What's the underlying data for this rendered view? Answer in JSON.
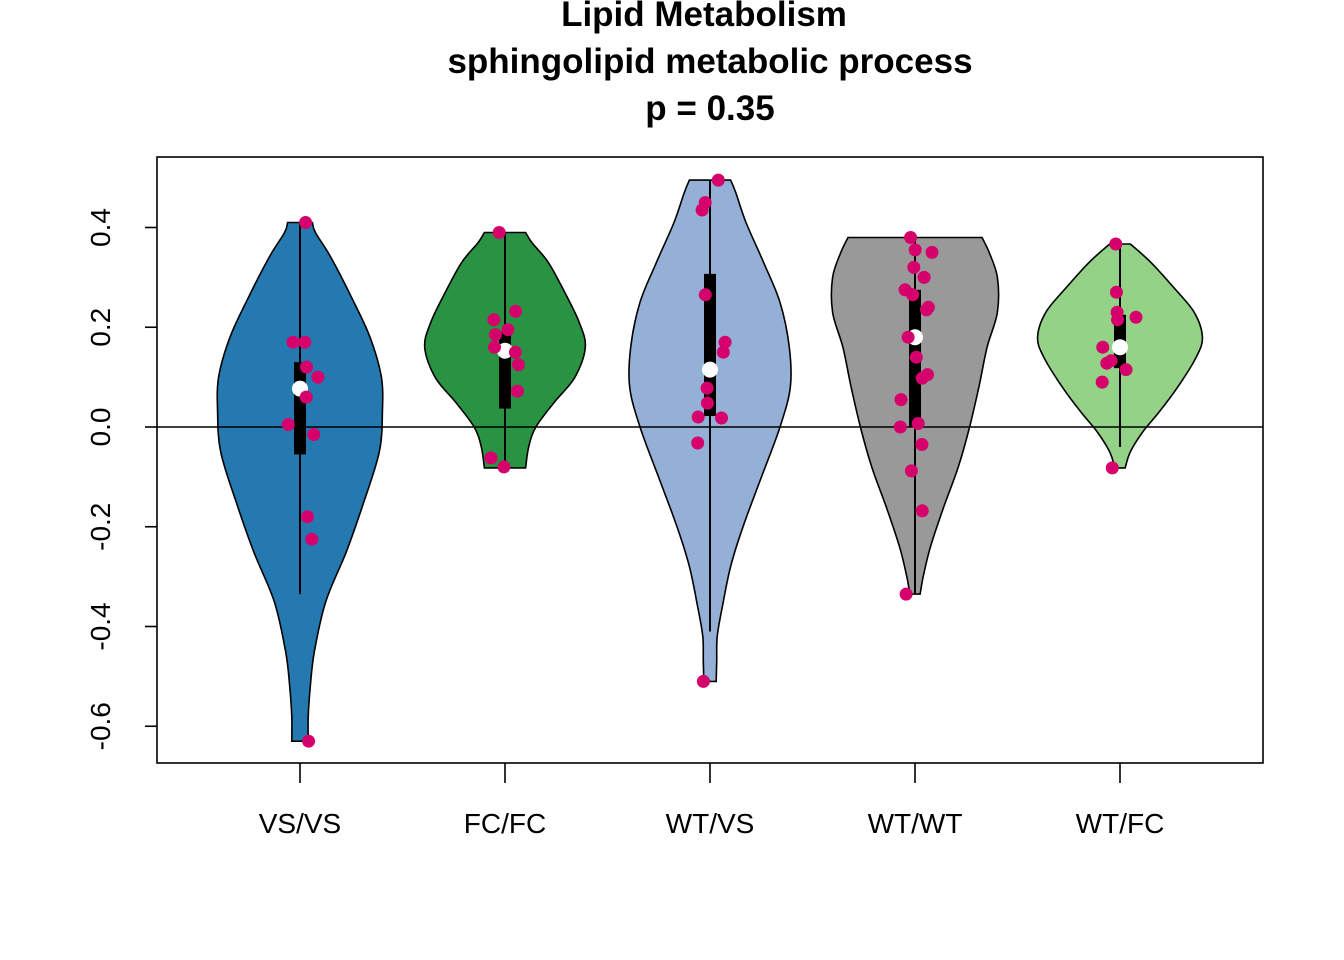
{
  "chart_data": {
    "type": "violin",
    "title": "Lipid Metabolism",
    "subtitle": "sphingolipid metabolic process",
    "pvalue_label": "p = 0.35",
    "xlabel": "",
    "ylabel": "",
    "ylim": [
      -0.67,
      0.54
    ],
    "yticks": [
      -0.6,
      -0.4,
      -0.2,
      0.0,
      0.2,
      0.4
    ],
    "ytick_labels": [
      "-0.6",
      "-0.4",
      "-0.2",
      "0.0",
      "0.2",
      "0.4"
    ],
    "reference_line_y": 0.0,
    "point_color": "#d6006c",
    "median_color": "#ffffff",
    "groups": [
      {
        "label": "VS/VS",
        "fill": "#2579b1",
        "range": [
          -0.63,
          0.41
        ],
        "whisker": [
          -0.335,
          0.41
        ],
        "box": [
          -0.055,
          0.13
        ],
        "median": 0.077,
        "half_width_profile": [
          [
            -0.63,
            0.08
          ],
          [
            -0.58,
            0.08
          ],
          [
            -0.52,
            0.1
          ],
          [
            -0.45,
            0.14
          ],
          [
            -0.35,
            0.25
          ],
          [
            -0.25,
            0.45
          ],
          [
            -0.15,
            0.62
          ],
          [
            -0.05,
            0.77
          ],
          [
            0.03,
            0.8
          ],
          [
            0.1,
            0.79
          ],
          [
            0.18,
            0.68
          ],
          [
            0.26,
            0.5
          ],
          [
            0.34,
            0.3
          ],
          [
            0.39,
            0.15
          ],
          [
            0.41,
            0.12
          ]
        ],
        "points": [
          [
            0.41,
            0.41
          ],
          [
            0.17,
            0.17
          ],
          [
            0.17,
            0.17
          ],
          [
            0.1,
            0.1
          ],
          [
            0.12,
            0.12
          ],
          [
            0.06,
            0.06
          ],
          [
            0.005,
            0.005
          ],
          [
            -0.015,
            -0.015
          ],
          [
            -0.18,
            -0.18
          ],
          [
            -0.225,
            -0.225
          ],
          [
            -0.63,
            -0.63
          ]
        ]
      },
      {
        "label": "FC/FC",
        "fill": "#2a9343",
        "range": [
          -0.082,
          0.39
        ],
        "whisker": [
          -0.082,
          0.39
        ],
        "box": [
          0.037,
          0.19
        ],
        "median": 0.153,
        "half_width_profile": [
          [
            -0.082,
            0.2
          ],
          [
            -0.04,
            0.23
          ],
          [
            0.0,
            0.3
          ],
          [
            0.05,
            0.48
          ],
          [
            0.1,
            0.68
          ],
          [
            0.16,
            0.78
          ],
          [
            0.21,
            0.72
          ],
          [
            0.27,
            0.58
          ],
          [
            0.33,
            0.42
          ],
          [
            0.37,
            0.26
          ],
          [
            0.39,
            0.2
          ]
        ],
        "points": [
          [
            0.39,
            0.39
          ],
          [
            0.232,
            0.232
          ],
          [
            0.215,
            0.215
          ],
          [
            0.195,
            0.195
          ],
          [
            0.185,
            0.185
          ],
          [
            0.16,
            0.16
          ],
          [
            0.15,
            0.15
          ],
          [
            0.125,
            0.125
          ],
          [
            0.072,
            0.072
          ],
          [
            -0.062,
            -0.062
          ],
          [
            -0.08,
            -0.08
          ]
        ]
      },
      {
        "label": "WT/VS",
        "fill": "#95b0d6",
        "range": [
          -0.51,
          0.495
        ],
        "whisker": [
          -0.41,
          0.495
        ],
        "box": [
          0.022,
          0.307
        ],
        "median": 0.115,
        "half_width_profile": [
          [
            -0.51,
            0.06
          ],
          [
            -0.47,
            0.065
          ],
          [
            -0.42,
            0.07
          ],
          [
            -0.36,
            0.12
          ],
          [
            -0.28,
            0.2
          ],
          [
            -0.2,
            0.32
          ],
          [
            -0.1,
            0.5
          ],
          [
            0.0,
            0.68
          ],
          [
            0.08,
            0.78
          ],
          [
            0.16,
            0.77
          ],
          [
            0.25,
            0.68
          ],
          [
            0.33,
            0.52
          ],
          [
            0.41,
            0.35
          ],
          [
            0.47,
            0.25
          ],
          [
            0.495,
            0.2
          ]
        ],
        "points": [
          [
            0.495,
            0.495
          ],
          [
            0.45,
            0.45
          ],
          [
            0.435,
            0.435
          ],
          [
            0.265,
            0.265
          ],
          [
            0.17,
            0.17
          ],
          [
            0.15,
            0.15
          ],
          [
            0.078,
            0.078
          ],
          [
            0.048,
            0.048
          ],
          [
            0.018,
            0.018
          ],
          [
            0.02,
            0.02
          ],
          [
            -0.032,
            -0.032
          ],
          [
            -0.51,
            -0.51
          ]
        ]
      },
      {
        "label": "WT/WT",
        "fill": "#999999",
        "range": [
          -0.335,
          0.38
        ],
        "whisker": [
          -0.335,
          0.38
        ],
        "box": [
          0.0,
          0.275
        ],
        "median": 0.18,
        "half_width_profile": [
          [
            -0.335,
            0.05
          ],
          [
            -0.3,
            0.08
          ],
          [
            -0.24,
            0.15
          ],
          [
            -0.16,
            0.28
          ],
          [
            -0.08,
            0.42
          ],
          [
            0.0,
            0.53
          ],
          [
            0.08,
            0.62
          ],
          [
            0.16,
            0.7
          ],
          [
            0.23,
            0.8
          ],
          [
            0.3,
            0.8
          ],
          [
            0.35,
            0.72
          ],
          [
            0.38,
            0.65
          ]
        ],
        "points": [
          [
            0.38,
            0.38
          ],
          [
            0.355,
            0.355
          ],
          [
            0.35,
            0.35
          ],
          [
            0.32,
            0.32
          ],
          [
            0.3,
            0.3
          ],
          [
            0.275,
            0.275
          ],
          [
            0.265,
            0.265
          ],
          [
            0.24,
            0.24
          ],
          [
            0.235,
            0.235
          ],
          [
            0.18,
            0.18
          ],
          [
            0.14,
            0.14
          ],
          [
            0.105,
            0.105
          ],
          [
            0.098,
            0.098
          ],
          [
            0.055,
            0.055
          ],
          [
            0.007,
            0.007
          ],
          [
            0.0,
            0.0
          ],
          [
            -0.035,
            -0.035
          ],
          [
            -0.088,
            -0.088
          ],
          [
            -0.168,
            -0.168
          ],
          [
            -0.335,
            -0.335
          ]
        ]
      },
      {
        "label": "WT/FC",
        "fill": "#93d287",
        "range": [
          -0.082,
          0.367
        ],
        "whisker": [
          -0.04,
          0.367
        ],
        "box": [
          0.118,
          0.225
        ],
        "median": 0.16,
        "half_width_profile": [
          [
            -0.082,
            0.05
          ],
          [
            -0.05,
            0.1
          ],
          [
            -0.01,
            0.22
          ],
          [
            0.03,
            0.38
          ],
          [
            0.08,
            0.56
          ],
          [
            0.14,
            0.74
          ],
          [
            0.18,
            0.8
          ],
          [
            0.23,
            0.72
          ],
          [
            0.28,
            0.52
          ],
          [
            0.33,
            0.3
          ],
          [
            0.367,
            0.1
          ]
        ],
        "points": [
          [
            0.367,
            0.367
          ],
          [
            0.27,
            0.27
          ],
          [
            0.23,
            0.23
          ],
          [
            0.22,
            0.22
          ],
          [
            0.215,
            0.215
          ],
          [
            0.16,
            0.16
          ],
          [
            0.133,
            0.133
          ],
          [
            0.128,
            0.128
          ],
          [
            0.115,
            0.115
          ],
          [
            0.09,
            0.09
          ],
          [
            -0.082,
            -0.082
          ]
        ]
      }
    ]
  }
}
